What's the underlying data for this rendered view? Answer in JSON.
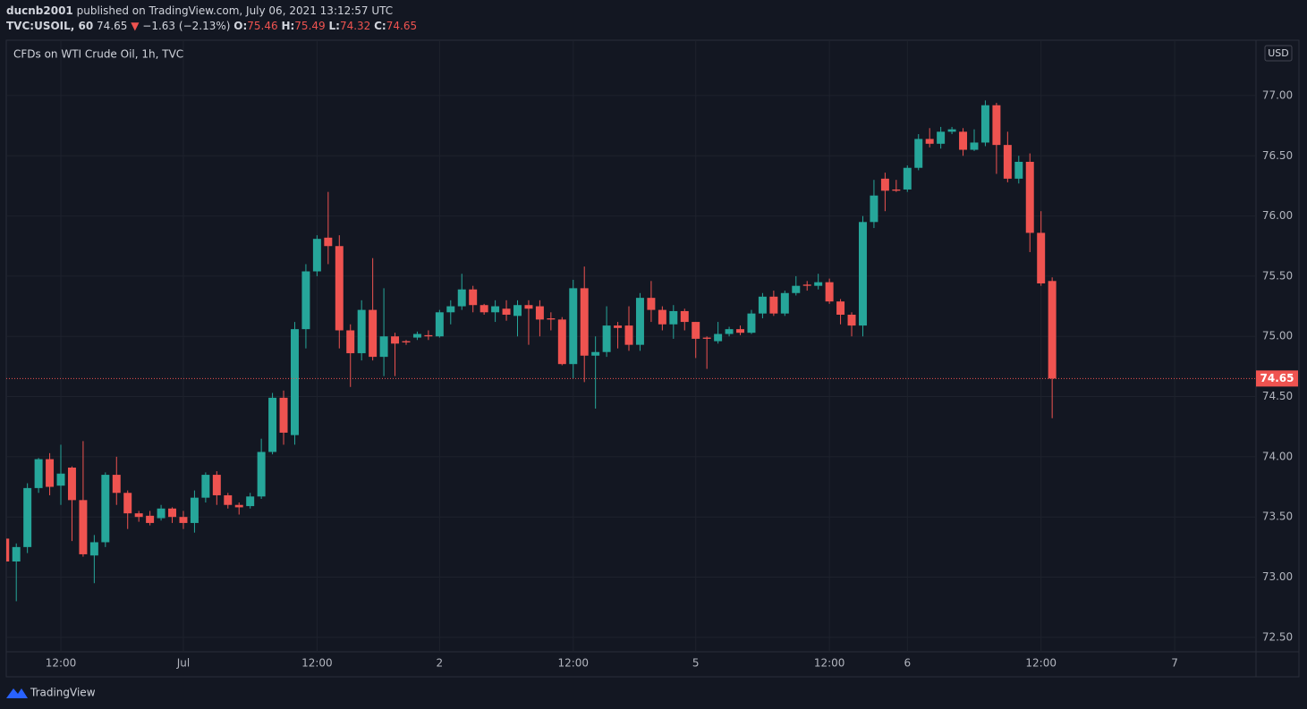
{
  "header": {
    "author": "ducnb2001",
    "published": "published on TradingView.com, July 06, 2021 13:12:57 UTC",
    "symbol": "TVC:USOIL, 60",
    "change_arrow": "▼",
    "change": "−1.63 (−2.13%)",
    "ohlc_labels": [
      "O:",
      "H:",
      "L:",
      "C:"
    ]
  },
  "chart_data": {
    "type": "candlestick",
    "title": "CFDs on WTI Crude Oil, 1h, TVC",
    "currency": "USD",
    "up_color": "#26a69a",
    "down_color": "#ef5350",
    "grid": true,
    "open": [
      73.32,
      73.13,
      73.25,
      73.74,
      73.98,
      73.76,
      73.91,
      73.64,
      73.18,
      73.29,
      73.85,
      73.7,
      73.53,
      73.51,
      73.49,
      73.57,
      73.5,
      73.45,
      73.66,
      73.85,
      73.68,
      73.6,
      73.59,
      73.67,
      74.04,
      74.49,
      74.18,
      75.06,
      75.54,
      75.82,
      75.75,
      75.05,
      74.86,
      75.22,
      74.83,
      75.0,
      74.96,
      74.99,
      75.01,
      75.0,
      75.2,
      75.25,
      75.39,
      75.26,
      75.2,
      75.23,
      75.17,
      75.26,
      75.25,
      75.15,
      75.14,
      74.77,
      75.4,
      74.84,
      74.87,
      75.09,
      75.09,
      74.93,
      75.32,
      75.22,
      75.1,
      75.21,
      75.12,
      74.99,
      74.96,
      75.02,
      75.06,
      75.03,
      75.19,
      75.33,
      75.19,
      75.36,
      75.43,
      75.42,
      75.45,
      75.29,
      75.18,
      75.09,
      75.95,
      76.31,
      76.22,
      76.22,
      76.4,
      76.64,
      76.6,
      76.7,
      76.7,
      76.55,
      76.61,
      76.92,
      76.59,
      76.31,
      76.45,
      75.86,
      75.46
    ],
    "high": [
      73.32,
      73.28,
      73.78,
      73.99,
      74.03,
      74.1,
      73.92,
      74.13,
      73.35,
      73.87,
      74.0,
      73.72,
      73.55,
      73.55,
      73.6,
      73.58,
      73.55,
      73.72,
      73.87,
      73.88,
      73.7,
      73.62,
      73.7,
      74.15,
      74.53,
      74.55,
      75.12,
      75.6,
      75.84,
      76.2,
      75.84,
      75.1,
      75.3,
      75.65,
      75.4,
      75.03,
      74.97,
      75.04,
      75.05,
      75.22,
      75.3,
      75.52,
      75.42,
      75.27,
      75.3,
      75.3,
      75.3,
      75.3,
      75.3,
      75.2,
      75.16,
      75.47,
      75.58,
      75.0,
      75.25,
      75.12,
      75.25,
      75.36,
      75.46,
      75.25,
      75.26,
      75.23,
      75.12,
      75.0,
      75.12,
      75.08,
      75.09,
      75.22,
      75.36,
      75.38,
      75.38,
      75.5,
      75.46,
      75.52,
      75.48,
      75.31,
      75.2,
      76.0,
      76.3,
      76.36,
      76.3,
      76.42,
      76.68,
      76.73,
      76.74,
      76.74,
      76.73,
      76.72,
      76.96,
      76.94,
      76.7,
      76.5,
      76.52,
      76.04,
      75.49
    ],
    "low": [
      73.1,
      72.8,
      73.2,
      73.7,
      73.68,
      73.6,
      73.3,
      73.17,
      72.95,
      73.25,
      73.6,
      73.4,
      73.46,
      73.43,
      73.47,
      73.45,
      73.4,
      73.37,
      73.62,
      73.6,
      73.57,
      73.52,
      73.57,
      73.65,
      74.02,
      74.1,
      74.1,
      74.9,
      75.5,
      75.6,
      74.9,
      74.58,
      74.8,
      74.8,
      74.67,
      74.67,
      74.93,
      74.97,
      74.97,
      74.99,
      75.1,
      75.22,
      75.2,
      75.18,
      75.12,
      75.13,
      75.0,
      74.93,
      75.0,
      75.05,
      74.76,
      74.65,
      74.62,
      74.4,
      74.83,
      74.9,
      74.88,
      74.88,
      75.12,
      75.05,
      74.98,
      75.05,
      74.82,
      74.73,
      74.94,
      75.0,
      75.01,
      75.02,
      75.15,
      75.17,
      75.17,
      75.34,
      75.38,
      75.39,
      75.27,
      75.1,
      75.0,
      75.0,
      75.9,
      76.04,
      76.2,
      76.2,
      76.38,
      76.57,
      76.56,
      76.68,
      76.5,
      76.54,
      76.58,
      76.35,
      76.28,
      76.27,
      75.7,
      75.42,
      74.32
    ],
    "close": [
      73.13,
      73.25,
      73.74,
      73.98,
      73.75,
      73.86,
      73.64,
      73.19,
      73.29,
      73.85,
      73.7,
      73.53,
      73.5,
      73.45,
      73.57,
      73.5,
      73.45,
      73.66,
      73.85,
      73.68,
      73.6,
      73.58,
      73.67,
      74.04,
      74.49,
      74.2,
      75.06,
      75.54,
      75.81,
      75.75,
      75.05,
      74.86,
      75.22,
      74.83,
      75.0,
      74.94,
      74.95,
      75.02,
      75.0,
      75.2,
      75.25,
      75.39,
      75.26,
      75.2,
      75.25,
      75.18,
      75.26,
      75.23,
      75.14,
      75.14,
      74.77,
      75.4,
      74.84,
      74.87,
      75.09,
      75.07,
      74.93,
      75.32,
      75.22,
      75.1,
      75.21,
      75.12,
      74.98,
      74.98,
      75.02,
      75.06,
      75.03,
      75.19,
      75.33,
      75.19,
      75.36,
      75.42,
      75.42,
      75.45,
      75.29,
      75.18,
      75.09,
      75.95,
      76.17,
      76.21,
      76.21,
      76.4,
      76.64,
      76.6,
      76.7,
      76.72,
      76.55,
      76.61,
      76.92,
      76.59,
      76.31,
      76.45,
      75.86,
      75.44,
      74.65
    ],
    "xlim": [
      0.1,
      112.3
    ],
    "xticks": [
      {
        "value": 5,
        "label": "12:00"
      },
      {
        "value": 16,
        "label": "Jul"
      },
      {
        "value": 28,
        "label": "12:00"
      },
      {
        "value": 39,
        "label": "2"
      },
      {
        "value": 51,
        "label": "12:00"
      },
      {
        "value": 62,
        "label": "5"
      },
      {
        "value": 74,
        "label": "12:00"
      },
      {
        "value": 81,
        "label": "6"
      },
      {
        "value": 93,
        "label": "12:00"
      },
      {
        "value": 105,
        "label": "7"
      }
    ],
    "ylim": [
      72.38,
      77.46
    ],
    "yticks": [
      {
        "value": 72.5,
        "label": "72.50"
      },
      {
        "value": 73,
        "label": "73.00"
      },
      {
        "value": 73.5,
        "label": "73.50"
      },
      {
        "value": 74,
        "label": "74.00"
      },
      {
        "value": 74.5,
        "label": "74.50"
      },
      {
        "value": 75,
        "label": "75.00"
      },
      {
        "value": 75.5,
        "label": "75.50"
      },
      {
        "value": 76,
        "label": "76.00"
      },
      {
        "value": 76.5,
        "label": "76.50"
      },
      {
        "value": 77,
        "label": "77.00"
      }
    ]
  },
  "footer": {
    "brand": "TradingView"
  }
}
